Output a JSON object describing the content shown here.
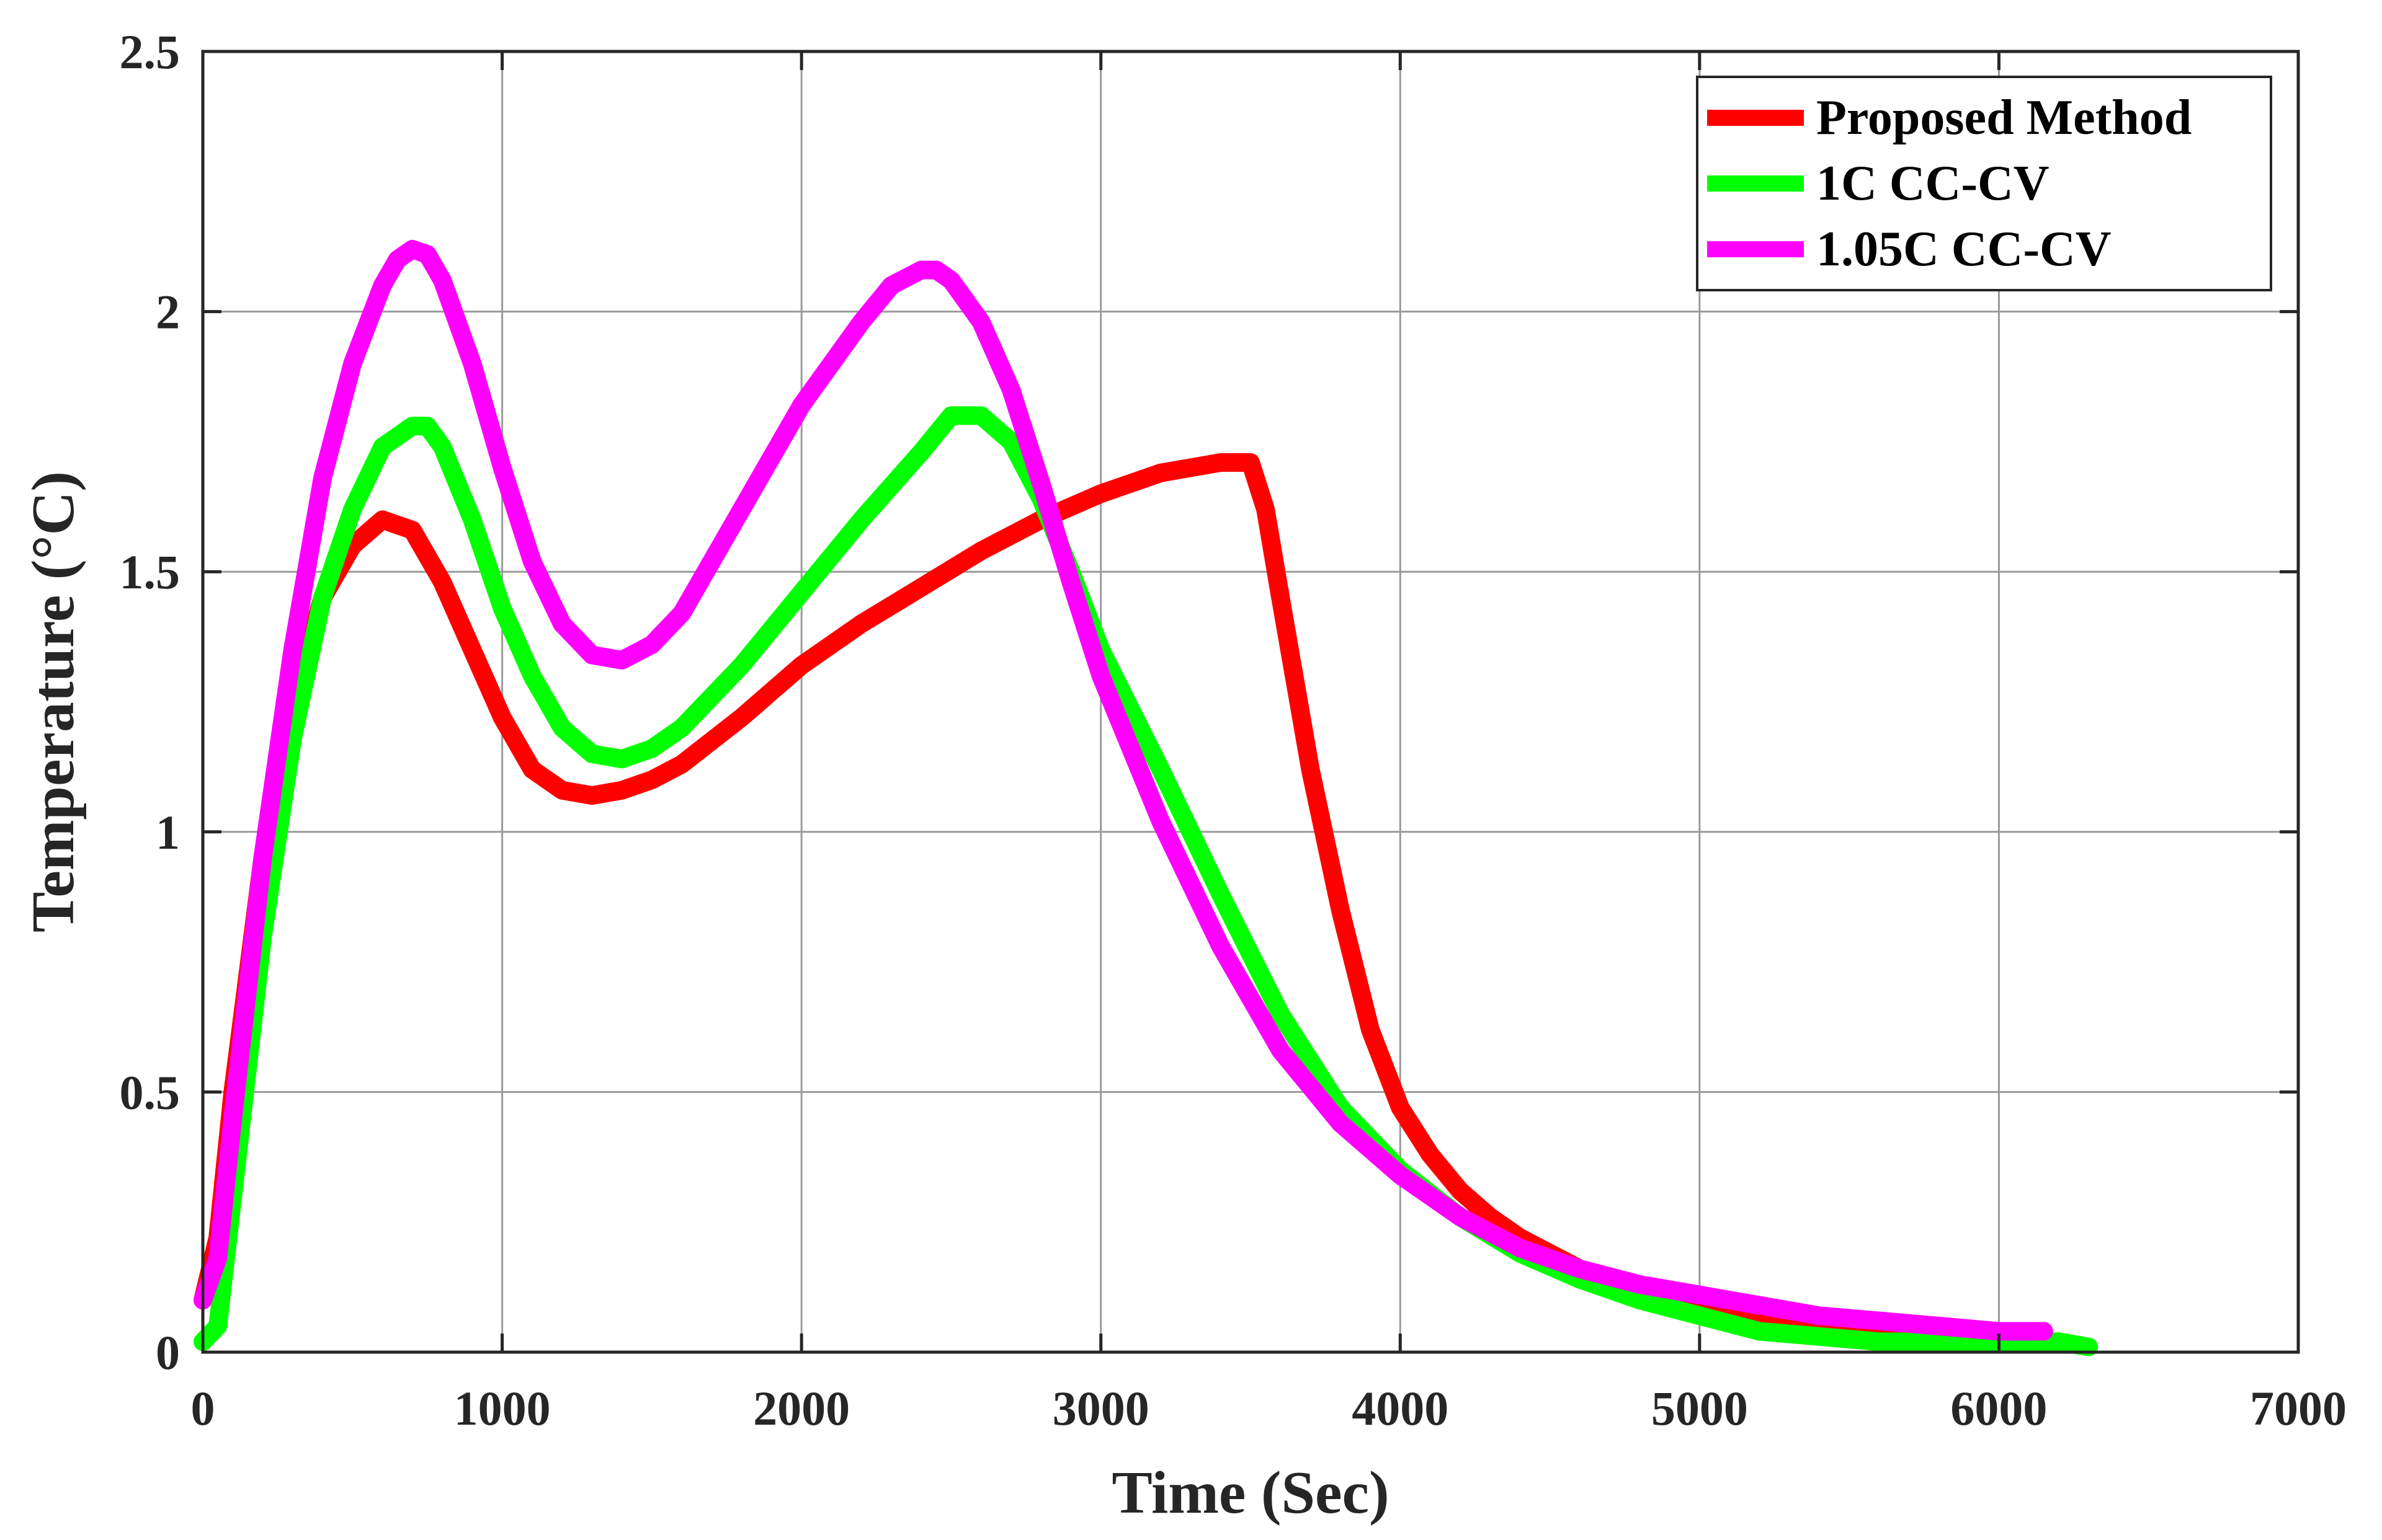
{
  "chart_data": {
    "type": "line",
    "title": "",
    "xlabel": "Time (Sec)",
    "ylabel": "Temperature (°C)",
    "xlim": [
      0,
      7000
    ],
    "ylim": [
      0,
      2.5
    ],
    "xticks": [
      0,
      1000,
      2000,
      3000,
      4000,
      5000,
      6000,
      7000
    ],
    "yticks": [
      0,
      0.5,
      1,
      1.5,
      2,
      2.5
    ],
    "xtick_labels": [
      "0",
      "1000",
      "2000",
      "3000",
      "4000",
      "5000",
      "6000",
      "7000"
    ],
    "ytick_labels": [
      "0",
      "0.5",
      "1",
      "1.5",
      "2",
      "2.5"
    ],
    "grid": true,
    "legend_position": "top-right",
    "series": [
      {
        "name": "Proposed Method",
        "color": "#ff0000",
        "x": [
          0,
          50,
          100,
          200,
          300,
          400,
          500,
          600,
          700,
          800,
          900,
          1000,
          1100,
          1200,
          1300,
          1400,
          1500,
          1600,
          1800,
          2000,
          2200,
          2400,
          2600,
          2800,
          3000,
          3200,
          3400,
          3500,
          3550,
          3600,
          3700,
          3800,
          3900,
          4000,
          4100,
          4200,
          4300,
          4400,
          4600,
          4800,
          5000,
          5200,
          5400,
          5600,
          5800,
          6000,
          6150
        ],
        "y": [
          0.1,
          0.22,
          0.5,
          0.95,
          1.25,
          1.45,
          1.55,
          1.6,
          1.58,
          1.48,
          1.35,
          1.22,
          1.12,
          1.08,
          1.07,
          1.08,
          1.1,
          1.13,
          1.22,
          1.32,
          1.4,
          1.47,
          1.54,
          1.6,
          1.65,
          1.69,
          1.71,
          1.71,
          1.62,
          1.45,
          1.12,
          0.85,
          0.62,
          0.47,
          0.38,
          0.31,
          0.26,
          0.22,
          0.16,
          0.12,
          0.09,
          0.06,
          0.04,
          0.04,
          0.04,
          0.04,
          0.03
        ]
      },
      {
        "name": "1C CC-CV",
        "color": "#00ff00",
        "x": [
          0,
          50,
          100,
          200,
          300,
          400,
          500,
          600,
          700,
          750,
          800,
          900,
          1000,
          1100,
          1200,
          1300,
          1400,
          1500,
          1600,
          1800,
          2000,
          2200,
          2400,
          2500,
          2600,
          2700,
          2800,
          2900,
          3000,
          3200,
          3400,
          3600,
          3800,
          4000,
          4200,
          4400,
          4600,
          4800,
          5000,
          5200,
          5400,
          5600,
          5800,
          6000,
          6200,
          6300
        ],
        "y": [
          0.02,
          0.05,
          0.3,
          0.8,
          1.18,
          1.45,
          1.62,
          1.74,
          1.78,
          1.78,
          1.74,
          1.6,
          1.43,
          1.3,
          1.2,
          1.15,
          1.14,
          1.16,
          1.2,
          1.32,
          1.46,
          1.6,
          1.73,
          1.8,
          1.8,
          1.75,
          1.64,
          1.5,
          1.35,
          1.12,
          0.88,
          0.65,
          0.47,
          0.35,
          0.26,
          0.19,
          0.14,
          0.1,
          0.07,
          0.04,
          0.03,
          0.02,
          0.02,
          0.02,
          0.02,
          0.01
        ]
      },
      {
        "name": "1.05C CC-CV",
        "color": "#ff00ff",
        "x": [
          0,
          50,
          100,
          200,
          300,
          400,
          500,
          600,
          650,
          700,
          750,
          800,
          900,
          1000,
          1100,
          1200,
          1300,
          1400,
          1500,
          1600,
          1800,
          2000,
          2200,
          2300,
          2400,
          2450,
          2500,
          2600,
          2700,
          2800,
          2900,
          3000,
          3200,
          3400,
          3600,
          3800,
          4000,
          4200,
          4400,
          4600,
          4800,
          5000,
          5200,
          5400,
          5600,
          5800,
          6000,
          6150
        ],
        "y": [
          0.1,
          0.18,
          0.45,
          0.95,
          1.35,
          1.68,
          1.9,
          2.05,
          2.1,
          2.12,
          2.11,
          2.06,
          1.9,
          1.7,
          1.52,
          1.4,
          1.34,
          1.33,
          1.36,
          1.42,
          1.62,
          1.82,
          1.98,
          2.05,
          2.08,
          2.08,
          2.06,
          1.98,
          1.85,
          1.67,
          1.48,
          1.3,
          1.02,
          0.78,
          0.58,
          0.44,
          0.34,
          0.26,
          0.2,
          0.16,
          0.13,
          0.11,
          0.09,
          0.07,
          0.06,
          0.05,
          0.04,
          0.04
        ]
      }
    ]
  }
}
